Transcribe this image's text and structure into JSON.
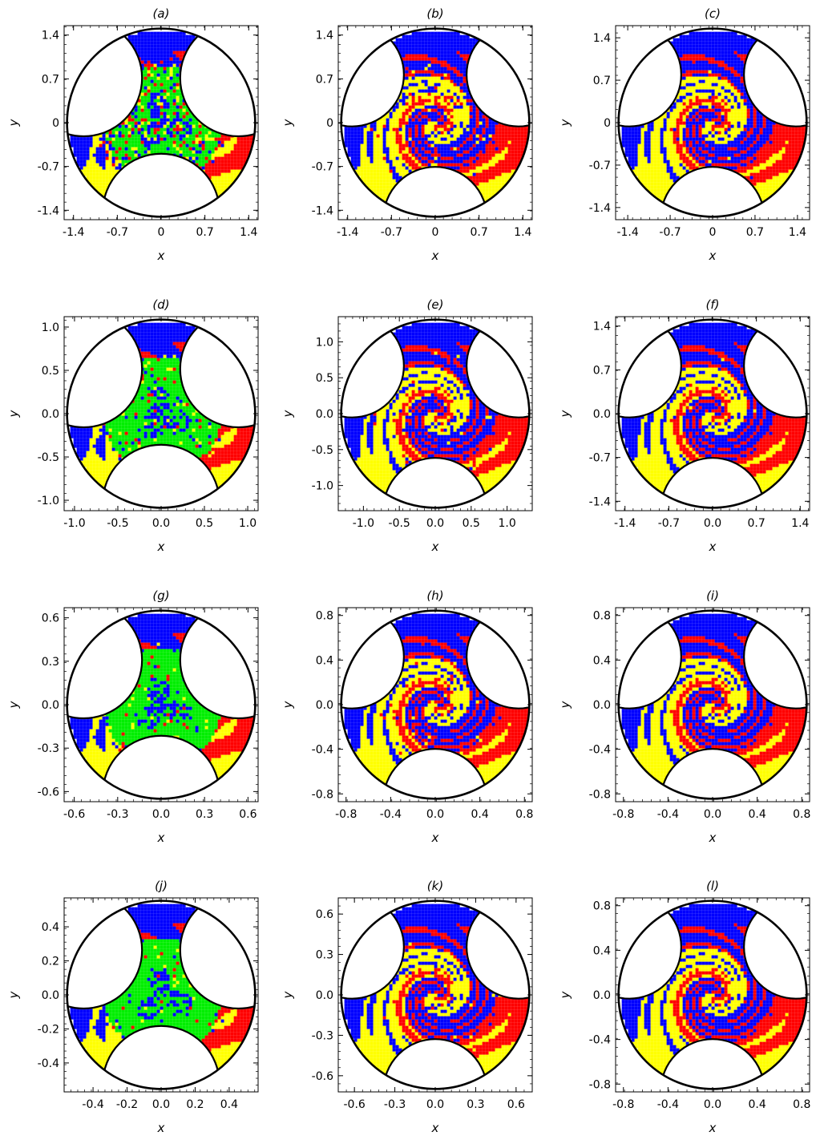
{
  "figure": {
    "panels": [
      {
        "label": "(a)",
        "xlabel": "x",
        "ylabel": "y",
        "range": 1.55,
        "ticks": [
          "-1.4",
          "-0.7",
          "0",
          "0.7",
          "1.4"
        ],
        "tickvals": [
          -1.4,
          -0.7,
          0,
          0.7,
          1.4
        ],
        "noise": 0.35,
        "green": true
      },
      {
        "label": "(b)",
        "xlabel": "x",
        "ylabel": "y",
        "range": 1.55,
        "ticks": [
          "-1.4",
          "-0.7",
          "0",
          "0.7",
          "1.4"
        ],
        "tickvals": [
          -1.4,
          -0.7,
          0,
          0.7,
          1.4
        ],
        "noise": 0.1,
        "green": false
      },
      {
        "label": "(c)",
        "xlabel": "x",
        "ylabel": "y",
        "range": 1.6,
        "ticks": [
          "-1.4",
          "-0.7",
          "0",
          "0.7",
          "1.4"
        ],
        "tickvals": [
          -1.4,
          -0.7,
          0,
          0.7,
          1.4
        ],
        "noise": 0.02,
        "green": false
      },
      {
        "label": "(d)",
        "xlabel": "x",
        "ylabel": "y",
        "range": 1.12,
        "ticks": [
          "-1.0",
          "-0.5",
          "0.0",
          "0.5",
          "1.0"
        ],
        "tickvals": [
          -1.0,
          -0.5,
          0,
          0.5,
          1.0
        ],
        "noise": 0.15,
        "green": true
      },
      {
        "label": "(e)",
        "xlabel": "x",
        "ylabel": "y",
        "range": 1.35,
        "ticks": [
          "-1.0",
          "-0.5",
          "0.0",
          "0.5",
          "1.0"
        ],
        "tickvals": [
          -1.0,
          -0.5,
          0,
          0.5,
          1.0
        ],
        "noise": 0.06,
        "green": false
      },
      {
        "label": "(f)",
        "xlabel": "x",
        "ylabel": "y",
        "range": 1.55,
        "ticks": [
          "-1.4",
          "-0.7",
          "0.0",
          "0.7",
          "1.4"
        ],
        "tickvals": [
          -1.4,
          -0.7,
          0,
          0.7,
          1.4
        ],
        "noise": 0.01,
        "green": false
      },
      {
        "label": "(g)",
        "xlabel": "x",
        "ylabel": "y",
        "range": 0.67,
        "ticks": [
          "-0.6",
          "-0.3",
          "0.0",
          "0.3",
          "0.6"
        ],
        "tickvals": [
          -0.6,
          -0.3,
          0,
          0.3,
          0.6
        ],
        "noise": 0.08,
        "green": true
      },
      {
        "label": "(h)",
        "xlabel": "x",
        "ylabel": "y",
        "range": 0.87,
        "ticks": [
          "-0.8",
          "-0.4",
          "0.0",
          "0.4",
          "0.8"
        ],
        "tickvals": [
          -0.8,
          -0.4,
          0,
          0.4,
          0.8
        ],
        "noise": 0.04,
        "green": false
      },
      {
        "label": "(i)",
        "xlabel": "x",
        "ylabel": "y",
        "range": 0.87,
        "ticks": [
          "-0.8",
          "-0.4",
          "0.0",
          "0.4",
          "0.8"
        ],
        "tickvals": [
          -0.8,
          -0.4,
          0,
          0.4,
          0.8
        ],
        "noise": 0.0,
        "green": false
      },
      {
        "label": "(j)",
        "xlabel": "x",
        "ylabel": "y",
        "range": 0.57,
        "ticks": [
          "-0.4",
          "-0.2",
          "0.0",
          "0.2",
          "0.4"
        ],
        "tickvals": [
          -0.4,
          -0.2,
          0,
          0.2,
          0.4
        ],
        "noise": 0.06,
        "green": true
      },
      {
        "label": "(k)",
        "xlabel": "x",
        "ylabel": "y",
        "range": 0.72,
        "ticks": [
          "-0.6",
          "-0.3",
          "0.0",
          "0.3",
          "0.6"
        ],
        "tickvals": [
          -0.6,
          -0.3,
          0,
          0.3,
          0.6
        ],
        "noise": 0.03,
        "green": false
      },
      {
        "label": "(l)",
        "xlabel": "x",
        "ylabel": "y",
        "range": 0.87,
        "ticks": [
          "-0.8",
          "-0.4",
          "0.0",
          "0.4",
          "0.8"
        ],
        "tickvals": [
          -0.8,
          -0.4,
          0,
          0.4,
          0.8
        ],
        "noise": 0.0,
        "green": false
      }
    ],
    "colors": {
      "blue": "#0000ff",
      "red": "#ff0000",
      "yellow": "#ffff00",
      "green": "#00ee00",
      "frame": "#000000"
    }
  }
}
